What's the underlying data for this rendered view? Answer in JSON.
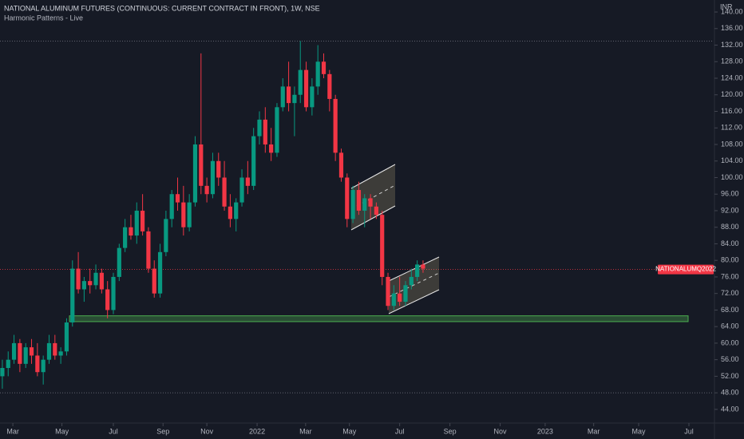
{
  "chart_data": {
    "type": "candlestick",
    "title": "NATIONAL ALUMINUM FUTURES (CONTINUOUS: CURRENT CONTRACT IN FRONT), 1W, NSE",
    "subtitle": "Harmonic Patterns - Live",
    "currency": "INR",
    "up_color": "#089981",
    "down_color": "#f23645",
    "grid": false,
    "open": [
      52,
      54,
      56,
      60,
      55,
      59,
      57,
      53,
      56,
      60,
      57,
      58,
      65,
      78,
      73,
      75,
      74,
      77,
      73,
      68,
      76,
      83,
      88,
      86,
      92,
      87,
      78,
      72,
      82,
      90,
      96,
      94,
      88,
      94,
      108,
      98,
      96,
      104,
      100,
      93,
      90,
      94,
      100,
      98,
      110,
      114,
      108,
      106,
      117,
      122,
      118,
      120,
      126,
      117,
      122,
      128,
      125,
      119,
      106,
      100,
      90,
      97,
      92,
      95,
      93,
      91,
      76,
      69,
      72,
      70,
      74,
      76,
      79
    ],
    "high": [
      56,
      58,
      62,
      61,
      60,
      61,
      60,
      57,
      62,
      62,
      59,
      66,
      80,
      82,
      76,
      78,
      79,
      78,
      75,
      77,
      84,
      90,
      91,
      94,
      96,
      88,
      80,
      84,
      92,
      97,
      100,
      98,
      96,
      110,
      130,
      100,
      106,
      106,
      104,
      96,
      95,
      102,
      104,
      112,
      116,
      117,
      112,
      118,
      124,
      128,
      122,
      133,
      128,
      124,
      132,
      130,
      126,
      120,
      107,
      101,
      98,
      99,
      96,
      96,
      94,
      92,
      77,
      74,
      76,
      75,
      78,
      80,
      80
    ],
    "low": [
      49,
      52,
      55,
      53,
      54,
      55,
      52,
      50,
      55,
      56,
      55,
      57,
      64,
      72,
      70,
      72,
      73,
      72,
      66,
      67,
      75,
      82,
      85,
      84,
      86,
      77,
      71,
      71,
      81,
      88,
      92,
      86,
      87,
      93,
      96,
      94,
      95,
      98,
      92,
      88,
      87,
      93,
      96,
      97,
      108,
      106,
      104,
      105,
      116,
      116,
      110,
      118,
      116,
      115,
      120,
      124,
      116,
      104,
      99,
      88,
      89,
      91,
      88,
      90,
      90,
      74,
      68,
      68,
      69,
      69,
      73,
      75,
      77
    ],
    "close": [
      54,
      56,
      60,
      55,
      59,
      57,
      53,
      56,
      60,
      57,
      58,
      65,
      78,
      73,
      75,
      74,
      77,
      73,
      68,
      76,
      83,
      88,
      86,
      92,
      87,
      78,
      72,
      82,
      90,
      96,
      94,
      88,
      94,
      108,
      98,
      96,
      104,
      100,
      93,
      90,
      94,
      100,
      98,
      110,
      114,
      108,
      106,
      117,
      122,
      118,
      120,
      126,
      117,
      122,
      128,
      125,
      119,
      106,
      100,
      90,
      97,
      92,
      95,
      93,
      91,
      76,
      69,
      72,
      70,
      74,
      76,
      79,
      78
    ],
    "xlim": [
      -0.4,
      121.6
    ],
    "xticks": [
      {
        "value": 1.8,
        "label": "Mar"
      },
      {
        "value": 10.2,
        "label": "May"
      },
      {
        "value": 19.0,
        "label": "Jul"
      },
      {
        "value": 27.5,
        "label": "Sep"
      },
      {
        "value": 35.0,
        "label": "Nov"
      },
      {
        "value": 43.6,
        "label": "2022"
      },
      {
        "value": 51.9,
        "label": "Mar"
      },
      {
        "value": 59.4,
        "label": "May"
      },
      {
        "value": 68.0,
        "label": "Jul"
      },
      {
        "value": 76.6,
        "label": "Sep"
      },
      {
        "value": 85.2,
        "label": "Nov"
      },
      {
        "value": 92.9,
        "label": "2023"
      },
      {
        "value": 101.2,
        "label": "Mar"
      },
      {
        "value": 108.9,
        "label": "May"
      },
      {
        "value": 117.5,
        "label": "Jul"
      }
    ],
    "ylim": [
      40.7,
      142.9
    ],
    "yticks": [
      {
        "value": 44,
        "label": "44.00"
      },
      {
        "value": 48,
        "label": "48.00"
      },
      {
        "value": 52,
        "label": "52.00"
      },
      {
        "value": 56,
        "label": "56.00"
      },
      {
        "value": 60,
        "label": "60.00"
      },
      {
        "value": 64,
        "label": "64.00"
      },
      {
        "value": 68,
        "label": "68.00"
      },
      {
        "value": 72,
        "label": "72.00"
      },
      {
        "value": 76,
        "label": "76.00"
      },
      {
        "value": 80,
        "label": "80.00"
      },
      {
        "value": 84,
        "label": "84.00"
      },
      {
        "value": 88,
        "label": "88.00"
      },
      {
        "value": 92,
        "label": "92.00"
      },
      {
        "value": 96,
        "label": "96.00"
      },
      {
        "value": 100,
        "label": "100.00"
      },
      {
        "value": 104,
        "label": "104.00"
      },
      {
        "value": 108,
        "label": "108.00"
      },
      {
        "value": 112,
        "label": "112.00"
      },
      {
        "value": 116,
        "label": "116.00"
      },
      {
        "value": 120,
        "label": "120.00"
      },
      {
        "value": 124,
        "label": "124.00"
      },
      {
        "value": 128,
        "label": "128.00"
      },
      {
        "value": 132,
        "label": "132.00"
      },
      {
        "value": 136,
        "label": "136.00"
      },
      {
        "value": 140,
        "label": "140.00"
      }
    ],
    "hlines": [
      133,
      48
    ],
    "zone": [
      65.2,
      66.6
    ],
    "price_line": {
      "value": 77.8,
      "label": "NATIONALUMQ2022"
    }
  }
}
